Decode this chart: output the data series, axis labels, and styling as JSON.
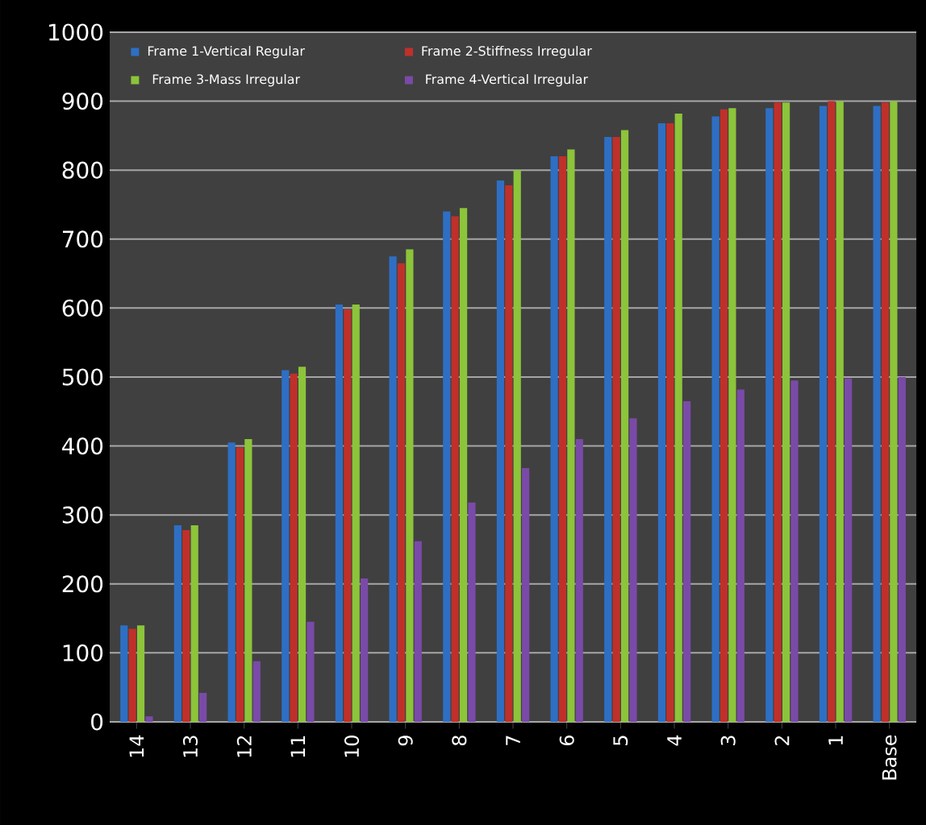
{
  "chart_data": {
    "type": "bar",
    "categories": [
      "14",
      "13",
      "12",
      "11",
      "10",
      "9",
      "8",
      "7",
      "6",
      "5",
      "4",
      "3",
      "2",
      "1",
      "Base"
    ],
    "series": [
      {
        "name": "Frame 1-Vertical Regular",
        "color": "#2e6fc4",
        "values": [
          140,
          285,
          405,
          510,
          605,
          675,
          740,
          785,
          820,
          848,
          868,
          878,
          890,
          893,
          893
        ]
      },
      {
        "name": "Frame 2-Stiffness Irregular",
        "color": "#c0302a",
        "values": [
          135,
          278,
          398,
          505,
          598,
          665,
          733,
          778,
          820,
          848,
          868,
          888,
          898,
          900,
          898
        ]
      },
      {
        "name": "Frame 3-Mass Irregular",
        "color": "#8cc43a",
        "values": [
          140,
          285,
          410,
          515,
          605,
          685,
          745,
          800,
          830,
          858,
          882,
          890,
          898,
          900,
          900
        ]
      },
      {
        "name": "Frame 4-Vertical Irregular",
        "color": "#7a4aa8",
        "values": [
          8,
          42,
          88,
          145,
          208,
          262,
          318,
          368,
          410,
          440,
          465,
          482,
          495,
          498,
          500
        ]
      }
    ],
    "ylim": [
      0,
      1000
    ],
    "yticks": [
      0,
      100,
      200,
      300,
      400,
      500,
      600,
      700,
      800,
      900,
      1000
    ],
    "grid": "y",
    "legend": "top"
  }
}
